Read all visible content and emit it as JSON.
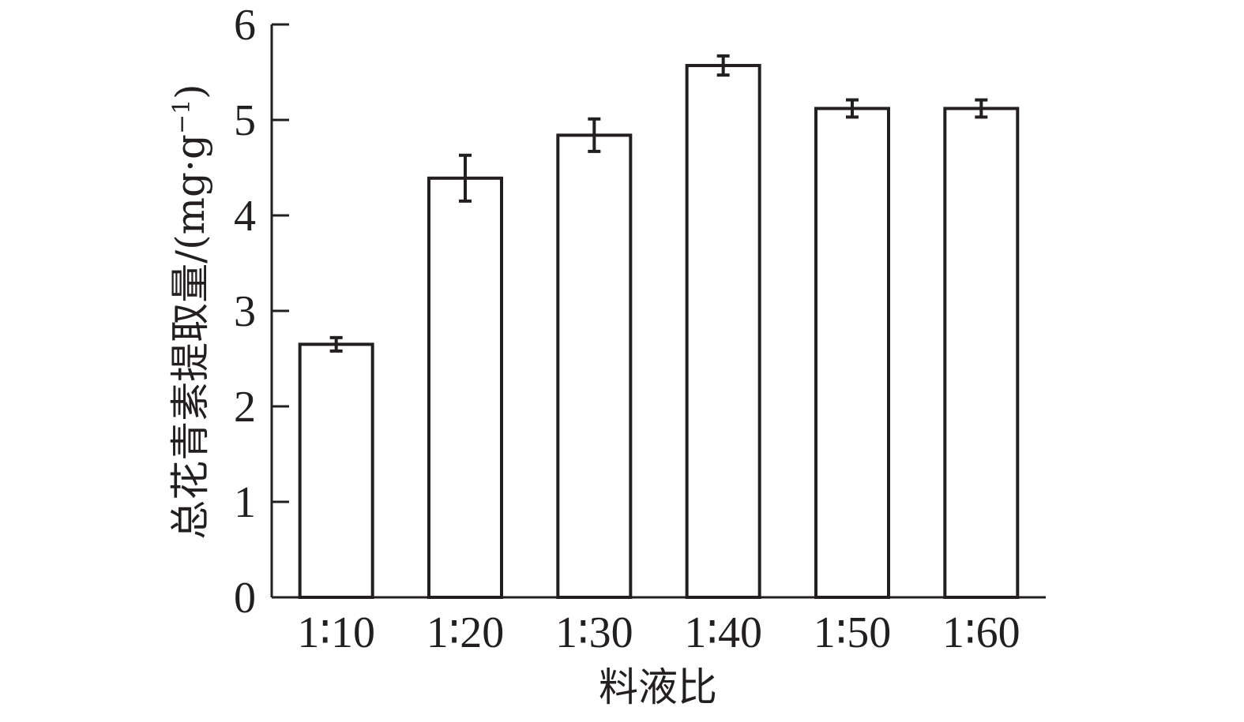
{
  "chart_data": {
    "type": "bar",
    "categories": [
      "1∶10",
      "1∶20",
      "1∶30",
      "1∶40",
      "1∶50",
      "1∶60"
    ],
    "values": [
      2.65,
      4.39,
      4.84,
      5.57,
      5.12,
      5.12
    ],
    "errors": [
      0.07,
      0.24,
      0.17,
      0.1,
      0.09,
      0.09
    ],
    "xlabel": "料液比",
    "ylabel": {
      "main": "总花青素提取量/(mg·g",
      "superscript": "−1",
      "close": ")"
    },
    "ylim": [
      0,
      6
    ],
    "yticks": [
      "0",
      "1",
      "2",
      "3",
      "4",
      "5",
      "6"
    ],
    "bar_fill": "#ffffff",
    "stroke_color": "#231f20",
    "grid": false
  }
}
